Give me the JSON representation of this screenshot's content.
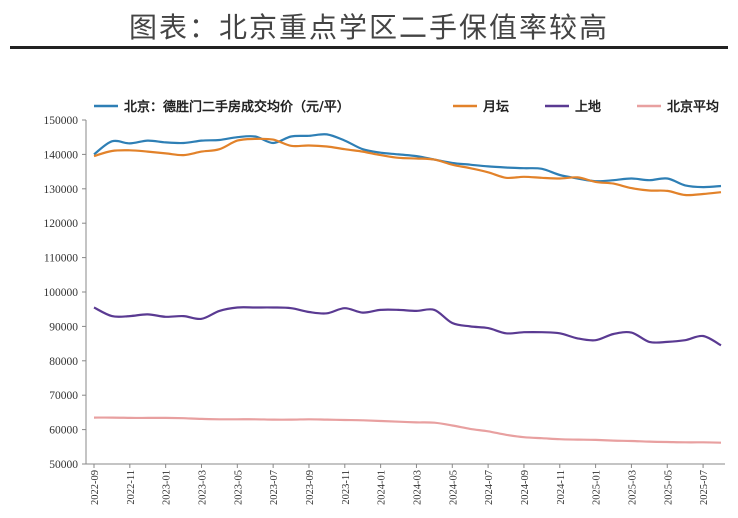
{
  "page": {
    "title": "图表：北京重点学区二手保值率较高"
  },
  "chart_data": {
    "type": "line",
    "title": "",
    "xlabel": "",
    "ylabel": "",
    "ylim": [
      50000,
      150000
    ],
    "yticks": [
      50000,
      60000,
      70000,
      80000,
      90000,
      100000,
      110000,
      120000,
      130000,
      140000,
      150000
    ],
    "grid": false,
    "legend_position": "top",
    "x": [
      "2022-09",
      "2022-10",
      "2022-11",
      "2022-12",
      "2023-01",
      "2023-02",
      "2023-03",
      "2023-04",
      "2023-05",
      "2023-06",
      "2023-07",
      "2023-08",
      "2023-09",
      "2023-10",
      "2023-11",
      "2023-12",
      "2024-01",
      "2024-02",
      "2024-03",
      "2024-04",
      "2024-05",
      "2024-06",
      "2024-07",
      "2024-08",
      "2024-09",
      "2024-10",
      "2024-11",
      "2024-12",
      "2025-01",
      "2025-02",
      "2025-03",
      "2025-04",
      "2025-05",
      "2025-06",
      "2025-07",
      "2025-08"
    ],
    "xticks": [
      "2022-09",
      "2022-11",
      "2023-01",
      "2023-03",
      "2023-05",
      "2023-07",
      "2023-09",
      "2023-11",
      "2024-01",
      "2024-03",
      "2024-05",
      "2024-07",
      "2024-09",
      "2024-11",
      "2025-01",
      "2025-03",
      "2025-05",
      "2025-07"
    ],
    "series": [
      {
        "name": "北京：德胜门二手房成交均价（元/平）",
        "color": "#2e7fb5",
        "values": [
          140000,
          143800,
          143200,
          144000,
          143500,
          143300,
          144000,
          144200,
          145000,
          145200,
          143300,
          145200,
          145400,
          145800,
          144000,
          141500,
          140500,
          140000,
          139500,
          138500,
          137500,
          137000,
          136500,
          136200,
          136000,
          135800,
          134000,
          133000,
          132200,
          132500,
          133000,
          132500,
          133000,
          131000,
          130500,
          130800
        ]
      },
      {
        "name": "月坛",
        "color": "#e2822a",
        "values": [
          139500,
          141000,
          141200,
          140800,
          140300,
          139800,
          140800,
          141500,
          144000,
          144500,
          144300,
          142500,
          142600,
          142300,
          141500,
          140800,
          139800,
          139000,
          138800,
          138500,
          137000,
          136000,
          134800,
          133200,
          133500,
          133200,
          133000,
          133300,
          132000,
          131500,
          130200,
          129500,
          129400,
          128200,
          128500,
          129000
        ]
      },
      {
        "name": "上地",
        "color": "#5a3a92",
        "values": [
          95500,
          93000,
          93000,
          93500,
          92800,
          93000,
          92200,
          94500,
          95500,
          95500,
          95500,
          95300,
          94200,
          93800,
          95300,
          94000,
          94800,
          94800,
          94500,
          94800,
          91000,
          90000,
          89500,
          88000,
          88300,
          88300,
          88000,
          86500,
          86000,
          87800,
          88200,
          85500,
          85500,
          86000,
          87200,
          84500
        ]
      },
      {
        "name": "北京平均",
        "color": "#e8a0a0",
        "values": [
          63500,
          63500,
          63400,
          63400,
          63400,
          63300,
          63100,
          63000,
          63000,
          63000,
          62900,
          62900,
          63000,
          62900,
          62800,
          62700,
          62500,
          62300,
          62100,
          62000,
          61200,
          60200,
          59500,
          58500,
          57800,
          57500,
          57200,
          57100,
          57000,
          56800,
          56700,
          56500,
          56400,
          56300,
          56300,
          56200
        ]
      }
    ]
  }
}
